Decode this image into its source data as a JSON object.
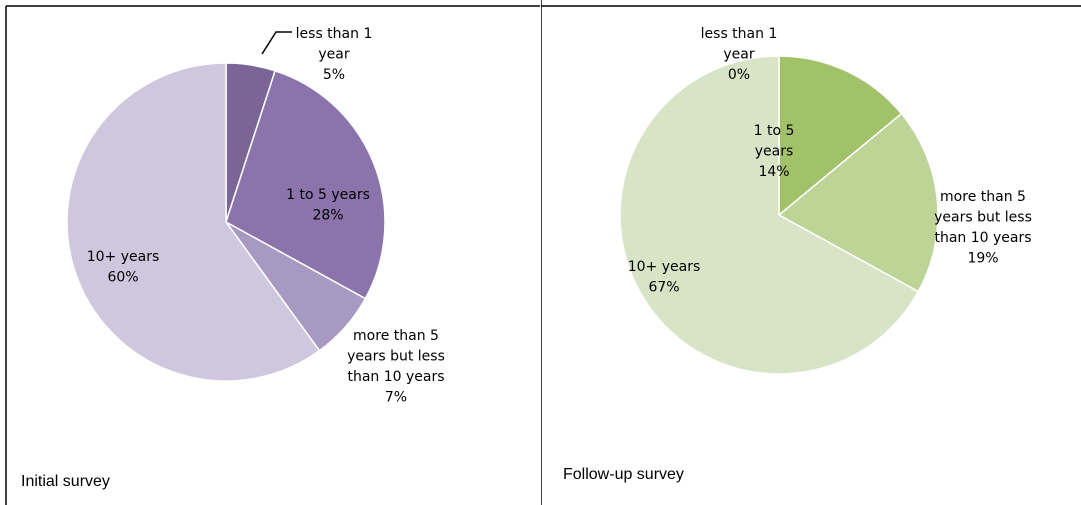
{
  "chart_data": [
    {
      "type": "pie",
      "caption": "Initial survey",
      "categories": [
        "less than 1 year",
        "1 to 5 years",
        "more than 5 years but less than 10 years",
        "10+ years"
      ],
      "values": [
        5,
        28,
        7,
        60
      ],
      "labels": [
        [
          "less than 1",
          "year",
          "5%"
        ],
        [
          "1 to 5 years",
          "28%"
        ],
        [
          "more than 5",
          "years but less",
          "than 10 years",
          "7%"
        ],
        [
          "10+ years",
          "60%"
        ]
      ],
      "colors": [
        "#7b6596",
        "#8b74ab",
        "#a899c3",
        "#cfc7de"
      ]
    },
    {
      "type": "pie",
      "caption": "Follow-up survey",
      "categories": [
        "less than 1 year",
        "1 to 5 years",
        "more than 5 years but less than 10 years",
        "10+ years"
      ],
      "values": [
        0,
        14,
        19,
        67
      ],
      "labels": [
        [
          "less than 1",
          "year",
          "0%"
        ],
        [
          "1 to 5",
          "years",
          "14%"
        ],
        [
          "more than 5",
          "years but less",
          "than 10 years",
          "19%"
        ],
        [
          "10+ years",
          "67%"
        ]
      ],
      "colors": [
        "#86ad4e",
        "#a2c26a",
        "#bdd497",
        "#d8e4c6"
      ]
    }
  ]
}
